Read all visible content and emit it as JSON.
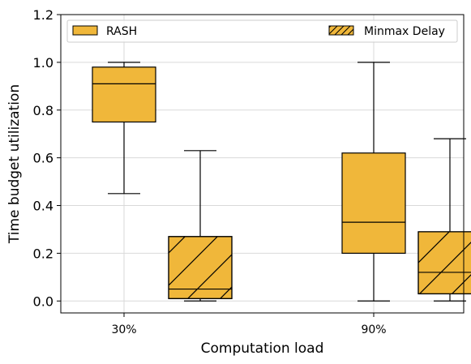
{
  "chart_data": {
    "type": "boxplot",
    "xlabel": "Computation load",
    "ylabel": "Time budget utilization",
    "categories": [
      "30%",
      "90%"
    ],
    "ylim": [
      -0.05,
      1.2
    ],
    "yticks": [
      "0.0",
      "0.2",
      "0.4",
      "0.6",
      "0.8",
      "1.0",
      "1.2"
    ],
    "grid": true,
    "legend_position": "top",
    "series": [
      {
        "name": "RASH",
        "color": "#f0b73a",
        "hatch": false,
        "boxes": [
          {
            "category": "30%",
            "min": 0.45,
            "q1": 0.75,
            "median": 0.91,
            "q3": 0.98,
            "max": 1.0
          },
          {
            "category": "90%",
            "min": 0.0,
            "q1": 0.2,
            "median": 0.33,
            "q3": 0.62,
            "max": 1.0
          }
        ]
      },
      {
        "name": "Minmax Delay",
        "color": "#f0b73a",
        "hatch": true,
        "boxes": [
          {
            "category": "30%",
            "min": 0.0,
            "q1": 0.01,
            "median": 0.05,
            "q3": 0.27,
            "max": 0.63
          },
          {
            "category": "90%",
            "min": 0.0,
            "q1": 0.03,
            "median": 0.12,
            "q3": 0.29,
            "max": 0.68
          }
        ]
      }
    ]
  }
}
